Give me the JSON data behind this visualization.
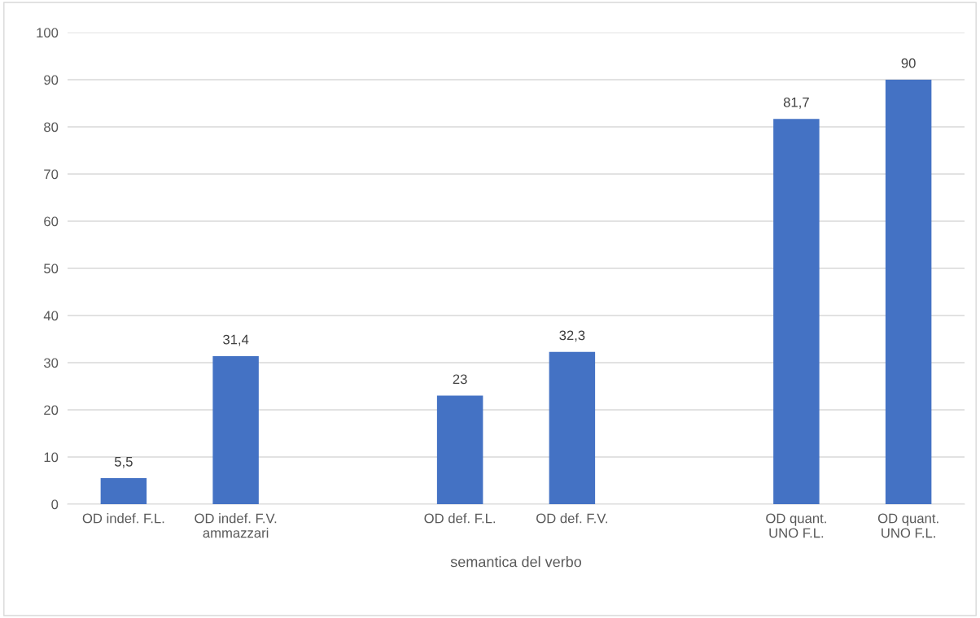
{
  "chart_data": {
    "type": "bar",
    "xlabel": "semantica del verbo",
    "categories": [
      "OD indef. F.L.",
      "OD indef. F.V.\nammazzari",
      null,
      "OD def. F.L.",
      "OD def. F.V.",
      null,
      "OD quant.\nUNO F.L.",
      "OD quant.\nUNO F.L."
    ],
    "series": [
      {
        "color": "#4472c4",
        "values": [
          5.5,
          31.4,
          null,
          23,
          32.3,
          null,
          81.7,
          90
        ],
        "value_labels": [
          "5,5",
          "31,4",
          null,
          "23",
          "32,3",
          null,
          "81,7",
          "90"
        ]
      }
    ],
    "ylim": [
      0,
      100
    ],
    "yticks": [
      0,
      10,
      20,
      30,
      40,
      50,
      60,
      70,
      80,
      90,
      100
    ],
    "grid": "y"
  }
}
